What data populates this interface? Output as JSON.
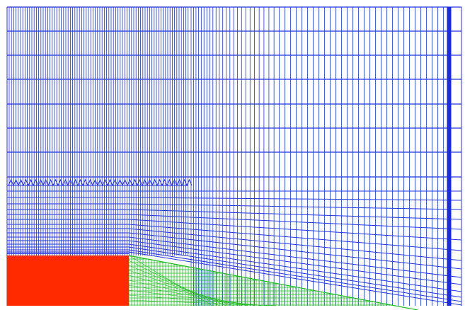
{
  "colors": {
    "background": "#ffffff",
    "fluid_mesh": "#2233dd",
    "solid_region": "#ff2a00",
    "boundary_layer_mesh": "#22bb22",
    "dense_column": "#1a2ae0"
  },
  "regions": [
    {
      "name": "fluid-domain-mesh",
      "color_key": "fluid_mesh"
    },
    {
      "name": "solid-block",
      "color_key": "solid_region"
    },
    {
      "name": "near-wall-mesh",
      "color_key": "boundary_layer_mesh"
    }
  ]
}
